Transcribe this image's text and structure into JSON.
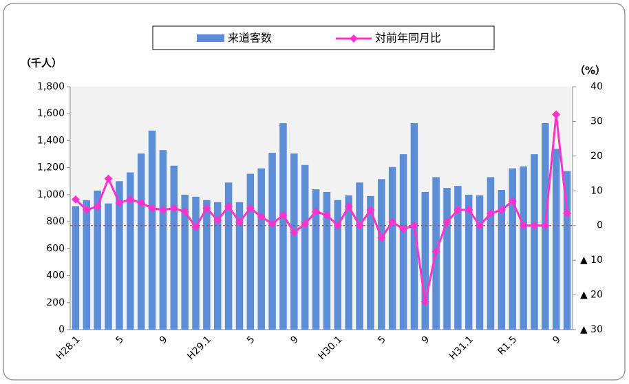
{
  "chart_data": {
    "type": "bar",
    "y_label": "（千人）",
    "y2_label": "（%）",
    "categories": [
      "H28.1",
      null,
      null,
      null,
      "5",
      null,
      null,
      null,
      "9",
      null,
      null,
      null,
      "H29.1",
      null,
      null,
      null,
      "5",
      null,
      null,
      null,
      "9",
      null,
      null,
      null,
      "H30.1",
      null,
      null,
      null,
      "5",
      null,
      null,
      null,
      "9",
      null,
      null,
      null,
      "H31.1",
      null,
      null,
      null,
      "R1.5",
      null,
      null,
      null,
      "9",
      null
    ],
    "series": [
      {
        "name": "来道客数",
        "type": "bar",
        "color": "#5b8ed6",
        "values": [
          915,
          960,
          1030,
          935,
          1100,
          1165,
          1305,
          1475,
          1330,
          1215,
          1000,
          985,
          960,
          945,
          1090,
          945,
          1155,
          1195,
          1310,
          1530,
          1305,
          1220,
          1040,
          1020,
          960,
          995,
          1090,
          990,
          1115,
          1205,
          1300,
          1530,
          1020,
          1130,
          1050,
          1065,
          1000,
          995,
          1130,
          1035,
          1195,
          1210,
          1300,
          1530,
          1340,
          1175
        ]
      },
      {
        "name": "対前年同月比",
        "type": "line",
        "axis": "y2",
        "color": "#ff33cc",
        "values": [
          7.5,
          4.5,
          5.5,
          13.5,
          6.5,
          7.5,
          6.5,
          5,
          4.5,
          5,
          4,
          -0.5,
          5,
          1.5,
          5.5,
          1,
          5,
          2.5,
          0.5,
          3,
          -2,
          0.5,
          4,
          3,
          0,
          5.5,
          0,
          4.5,
          -3.5,
          1,
          -1,
          0,
          -22,
          -7.5,
          1,
          4.5,
          4.5,
          0,
          3.5,
          4.5,
          7,
          0,
          0,
          0,
          32,
          3.5
        ]
      }
    ],
    "ylim": [
      0,
      1800
    ],
    "yticks": [
      0,
      200,
      400,
      600,
      800,
      {
        "value": 1000,
        "label": "1,000"
      },
      {
        "value": 1200,
        "label": "1,200"
      },
      {
        "value": 1400,
        "label": "1,400"
      },
      {
        "value": 1600,
        "label": "1,600"
      },
      {
        "value": 1800,
        "label": "1,800"
      }
    ],
    "y2lim": [
      -30,
      40
    ],
    "y2ticks": [
      {
        "value": -30,
        "label": "▲ 30"
      },
      {
        "value": -20,
        "label": "▲ 20"
      },
      {
        "value": -10,
        "label": "▲ 10"
      },
      0,
      10,
      20,
      30,
      40
    ],
    "zero_line_color": "#e03030",
    "legend": "top"
  }
}
